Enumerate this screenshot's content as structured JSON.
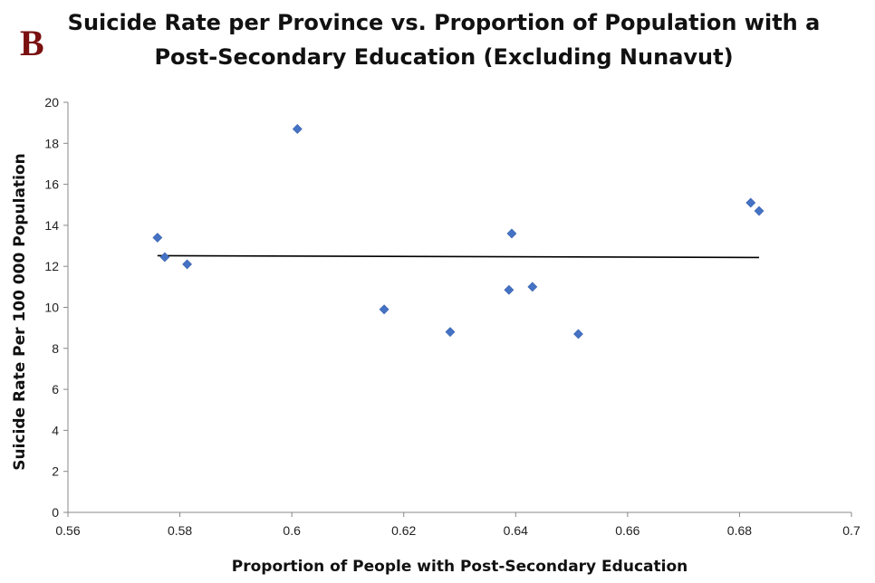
{
  "panel_label": "B",
  "chart_data": {
    "type": "scatter",
    "title_lines": [
      "Suicide Rate per Province vs. Proportion of Population with a",
      "Post-Secondary Education (Excluding Nunavut)"
    ],
    "xlabel": "Proportion of People with Post-Secondary Education",
    "ylabel": "Suicide Rate Per 100 000 Population",
    "xlim": [
      0.56,
      0.7
    ],
    "ylim": [
      0,
      20
    ],
    "x_ticks": [
      "0.56",
      "0.58",
      "0.6",
      "0.62",
      "0.64",
      "0.66",
      "0.68",
      "0.7"
    ],
    "y_ticks": [
      "0",
      "2",
      "4",
      "6",
      "8",
      "10",
      "12",
      "14",
      "16",
      "18",
      "20"
    ],
    "grid": false,
    "legend": "none",
    "marker": "diamond",
    "marker_color": "#4472c4",
    "points": [
      {
        "x": 0.576,
        "y": 13.4
      },
      {
        "x": 0.5773,
        "y": 12.45
      },
      {
        "x": 0.5813,
        "y": 12.1
      },
      {
        "x": 0.601,
        "y": 18.7
      },
      {
        "x": 0.6165,
        "y": 9.9
      },
      {
        "x": 0.6283,
        "y": 8.8
      },
      {
        "x": 0.6388,
        "y": 10.85
      },
      {
        "x": 0.6393,
        "y": 13.6
      },
      {
        "x": 0.643,
        "y": 11.0
      },
      {
        "x": 0.6512,
        "y": 8.7
      },
      {
        "x": 0.682,
        "y": 15.1
      },
      {
        "x": 0.6835,
        "y": 14.7
      }
    ],
    "trendline": {
      "type": "linear",
      "color": "#000000",
      "points": [
        {
          "x": 0.576,
          "y": 12.52
        },
        {
          "x": 0.6835,
          "y": 12.43
        }
      ]
    }
  }
}
